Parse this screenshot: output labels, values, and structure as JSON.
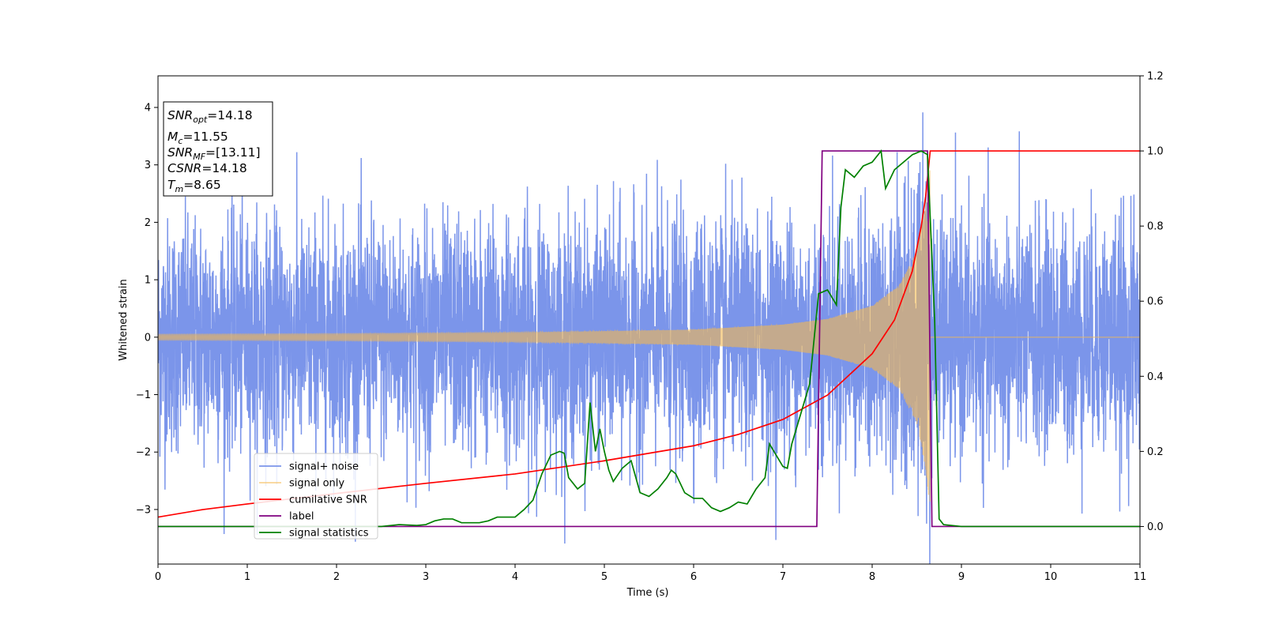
{
  "chart_data": {
    "type": "line",
    "xlabel": "Time (s)",
    "ylabel": "Whitened strain",
    "xlim": [
      0,
      11
    ],
    "ylim_left": [
      -3.95,
      4.55
    ],
    "ylim_right": [
      -0.1,
      1.2
    ],
    "x_ticks": [
      0,
      1,
      2,
      3,
      4,
      5,
      6,
      7,
      8,
      9,
      10,
      11
    ],
    "y_ticks_left": [
      -3,
      -2,
      -1,
      0,
      1,
      2,
      3,
      4
    ],
    "y_ticks_left_labels": [
      "−3",
      "−2",
      "−1",
      "0",
      "1",
      "2",
      "3",
      "4"
    ],
    "y_ticks_right": [
      0.0,
      0.2,
      0.4,
      0.6,
      0.8,
      1.0,
      1.2
    ],
    "y_ticks_right_labels": [
      "0.0",
      "0.2",
      "0.4",
      "0.6",
      "0.8",
      "1.0",
      "1.2"
    ],
    "legend_position": "lower-left",
    "colors": {
      "noise": "#6d8ae8",
      "signal": "#f5b94f",
      "cumulative_snr": "#ff0000",
      "label": "#800080",
      "statistics": "#008000"
    },
    "series": [
      {
        "name": "signal+ noise",
        "axis": "left",
        "description_of_shape": "white noise around 0 with std about 1 plus inspiral chirp",
        "noise_std": 1.0,
        "noise_range": [
          -3.5,
          4.2
        ]
      },
      {
        "name": "signal only",
        "axis": "left",
        "merger_time": 8.65,
        "amplitude_points": [
          [
            0,
            0.05
          ],
          [
            2,
            0.06
          ],
          [
            4,
            0.08
          ],
          [
            6,
            0.13
          ],
          [
            7,
            0.22
          ],
          [
            7.5,
            0.32
          ],
          [
            8,
            0.55
          ],
          [
            8.3,
            0.9
          ],
          [
            8.5,
            1.5
          ],
          [
            8.6,
            2.3
          ],
          [
            8.65,
            3.0
          ]
        ]
      },
      {
        "name": "cumilative SNR",
        "axis": "right",
        "points": [
          [
            0,
            0.025
          ],
          [
            0.5,
            0.045
          ],
          [
            1,
            0.06
          ],
          [
            2,
            0.088
          ],
          [
            3,
            0.115
          ],
          [
            4,
            0.14
          ],
          [
            5,
            0.175
          ],
          [
            6,
            0.215
          ],
          [
            6.5,
            0.245
          ],
          [
            7,
            0.285
          ],
          [
            7.5,
            0.35
          ],
          [
            8,
            0.46
          ],
          [
            8.25,
            0.55
          ],
          [
            8.45,
            0.68
          ],
          [
            8.55,
            0.8
          ],
          [
            8.6,
            0.88
          ],
          [
            8.65,
            1.0
          ],
          [
            11,
            1.0
          ]
        ]
      },
      {
        "name": "label",
        "axis": "right",
        "points": [
          [
            0,
            0
          ],
          [
            7.38,
            0
          ],
          [
            7.44,
            1.0
          ],
          [
            8.62,
            1.0
          ],
          [
            8.67,
            0
          ],
          [
            11,
            0
          ]
        ]
      },
      {
        "name": "signal statistics",
        "axis": "right",
        "points": [
          [
            0,
            0
          ],
          [
            2.5,
            0
          ],
          [
            2.7,
            0.005
          ],
          [
            2.9,
            0.003
          ],
          [
            3.0,
            0.005
          ],
          [
            3.1,
            0.015
          ],
          [
            3.2,
            0.02
          ],
          [
            3.3,
            0.02
          ],
          [
            3.4,
            0.01
          ],
          [
            3.6,
            0.01
          ],
          [
            3.7,
            0.015
          ],
          [
            3.8,
            0.025
          ],
          [
            4.0,
            0.025
          ],
          [
            4.1,
            0.045
          ],
          [
            4.2,
            0.07
          ],
          [
            4.3,
            0.14
          ],
          [
            4.4,
            0.19
          ],
          [
            4.5,
            0.2
          ],
          [
            4.55,
            0.195
          ],
          [
            4.6,
            0.13
          ],
          [
            4.7,
            0.1
          ],
          [
            4.78,
            0.115
          ],
          [
            4.84,
            0.33
          ],
          [
            4.9,
            0.2
          ],
          [
            4.95,
            0.26
          ],
          [
            5.0,
            0.2
          ],
          [
            5.05,
            0.15
          ],
          [
            5.1,
            0.12
          ],
          [
            5.2,
            0.155
          ],
          [
            5.3,
            0.175
          ],
          [
            5.4,
            0.09
          ],
          [
            5.5,
            0.08
          ],
          [
            5.6,
            0.1
          ],
          [
            5.7,
            0.13
          ],
          [
            5.75,
            0.15
          ],
          [
            5.8,
            0.14
          ],
          [
            5.9,
            0.09
          ],
          [
            6.0,
            0.075
          ],
          [
            6.1,
            0.075
          ],
          [
            6.2,
            0.05
          ],
          [
            6.3,
            0.04
          ],
          [
            6.4,
            0.05
          ],
          [
            6.5,
            0.065
          ],
          [
            6.6,
            0.06
          ],
          [
            6.7,
            0.1
          ],
          [
            6.8,
            0.13
          ],
          [
            6.85,
            0.22
          ],
          [
            6.9,
            0.2
          ],
          [
            7.0,
            0.16
          ],
          [
            7.05,
            0.155
          ],
          [
            7.1,
            0.22
          ],
          [
            7.2,
            0.3
          ],
          [
            7.3,
            0.38
          ],
          [
            7.35,
            0.5
          ],
          [
            7.4,
            0.62
          ],
          [
            7.5,
            0.63
          ],
          [
            7.6,
            0.59
          ],
          [
            7.65,
            0.85
          ],
          [
            7.7,
            0.95
          ],
          [
            7.8,
            0.93
          ],
          [
            7.9,
            0.96
          ],
          [
            8.0,
            0.97
          ],
          [
            8.1,
            1.0
          ],
          [
            8.15,
            0.9
          ],
          [
            8.25,
            0.95
          ],
          [
            8.35,
            0.97
          ],
          [
            8.45,
            0.99
          ],
          [
            8.55,
            1.0
          ],
          [
            8.62,
            0.99
          ],
          [
            8.7,
            0.55
          ],
          [
            8.75,
            0.02
          ],
          [
            8.8,
            0.005
          ],
          [
            9.0,
            0
          ],
          [
            11,
            0
          ]
        ]
      }
    ],
    "annotation": {
      "snr_opt_value": "=14.18",
      "mc_value": "=11.55",
      "snr_mf_value": "=[13.11]",
      "csnr_value": "=14.18",
      "tm_value": "=8.65"
    }
  }
}
